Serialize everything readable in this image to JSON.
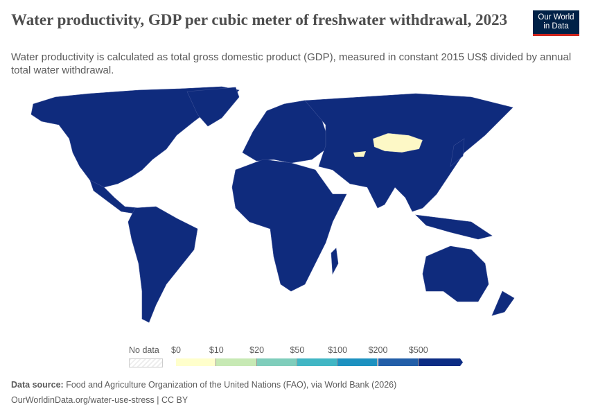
{
  "title": "Water productivity, GDP per cubic meter of freshwater withdrawal, 2023",
  "subtitle": "Water productivity is calculated as total gross domestic product (GDP), measured in constant 2015 US$ divided by annual total water withdrawal.",
  "logo": {
    "line1": "Our World",
    "line2": "in Data"
  },
  "legend": {
    "no_data": "No data",
    "ticks": [
      "$0",
      "$10",
      "$20",
      "$50",
      "$100",
      "$200",
      "$500"
    ],
    "colors": [
      "#ffffcc",
      "#c7e9b4",
      "#7fcdbb",
      "#41b6c4",
      "#1d91c0",
      "#225ea8",
      "#0c2c84"
    ]
  },
  "colors": {
    "land": "#0f2b7d",
    "mongolia": "#fdf8c6",
    "border": "#3a4f96"
  },
  "footer": {
    "source_label": "Data source:",
    "source": " Food and Agriculture Organization of the United Nations (FAO), via World Bank (2026)",
    "url": "OurWorldinData.org/water-use-stress | CC BY"
  }
}
